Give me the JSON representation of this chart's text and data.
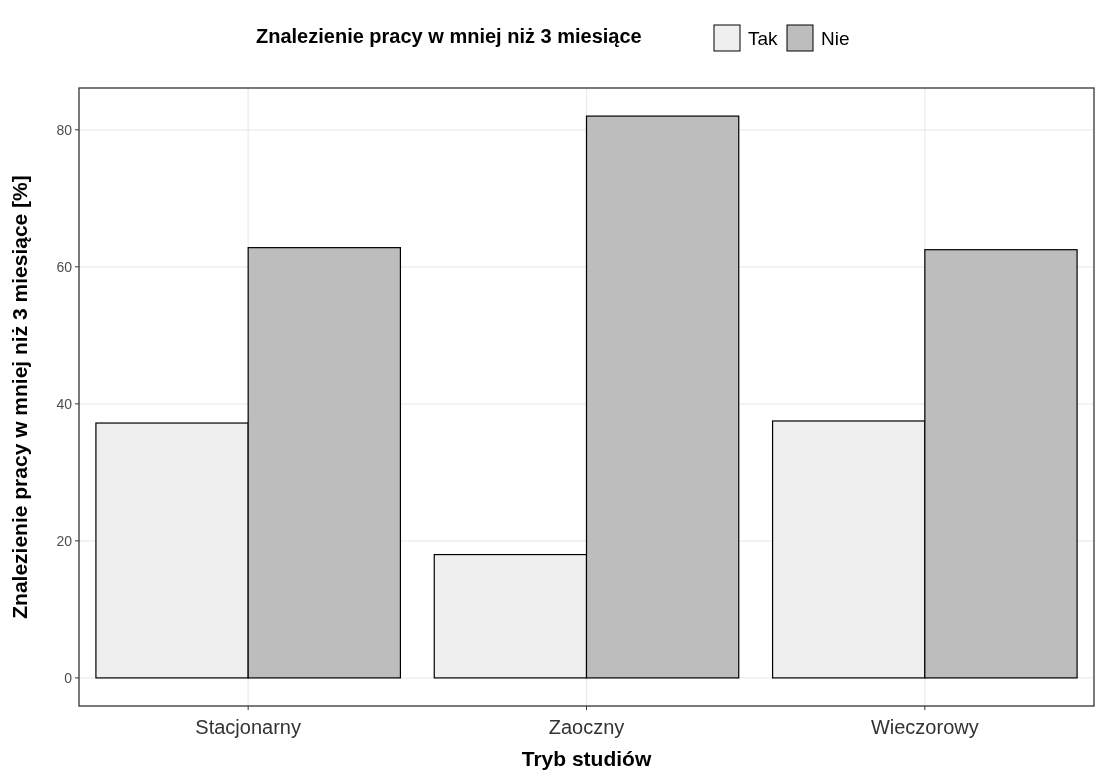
{
  "chart_data": {
    "type": "bar",
    "xlabel": "Tryb studiów",
    "ylabel": "Znalezienie pracy w mniej niż 3 miesiące [%]",
    "legend_title": "Znalezienie pracy w mniej niż 3 miesiące",
    "legend": "top",
    "grid": true,
    "categories": [
      "Stacjonarny",
      "Zaoczny",
      "Wieczorowy"
    ],
    "series": [
      {
        "name": "Tak",
        "color": "#efefef",
        "values": [
          37.2,
          18,
          37.5
        ]
      },
      {
        "name": "Nie",
        "color": "#bdbdbd",
        "values": [
          62.8,
          82,
          62.5
        ]
      }
    ],
    "ylim": [
      -4.1,
      86.1
    ],
    "yticks": [
      0,
      20,
      40,
      60,
      80
    ]
  }
}
